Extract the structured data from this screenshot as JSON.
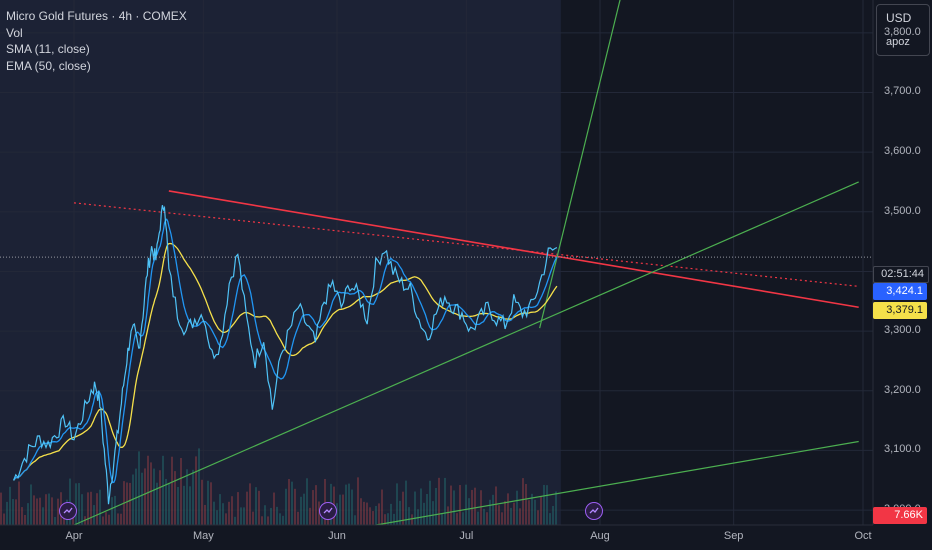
{
  "legend": {
    "title": "Micro Gold Futures · 4h · COMEX",
    "vol": "Vol",
    "sma": "SMA (11, close)",
    "ema": "EMA (50, close)"
  },
  "top_right": {
    "currency": "USD",
    "user": "apoz"
  },
  "y_axis": {
    "labels": [
      {
        "text": "3,800.0",
        "value": 3800
      },
      {
        "text": "3,700.0",
        "value": 3700
      },
      {
        "text": "3,600.0",
        "value": 3600
      },
      {
        "text": "3,500.0",
        "value": 3500
      },
      {
        "text": "3,300.0",
        "value": 3300
      },
      {
        "text": "3,200.0",
        "value": 3200
      },
      {
        "text": "3,100.0",
        "value": 3100
      },
      {
        "text": "3,000.0",
        "value": 3000
      }
    ],
    "ylim": [
      2975,
      3855
    ]
  },
  "x_axis": {
    "labels": [
      {
        "text": "Apr",
        "day": 0
      },
      {
        "text": "May",
        "day": 30
      },
      {
        "text": "Jun",
        "day": 61
      },
      {
        "text": "Jul",
        "day": 91
      },
      {
        "text": "Aug",
        "day": 122
      },
      {
        "text": "Sep",
        "day": 153
      },
      {
        "text": "Oct",
        "day": 183
      }
    ]
  },
  "price_tags": {
    "countdown": "02:51:44",
    "close": "3,424.1",
    "ema": "3,379.1",
    "volume": "7.66K"
  },
  "colors": {
    "background": "#131722",
    "up": "#26a69a",
    "candle_line": "#4fc3f7",
    "sma": "#2196f3",
    "ema": "#f5e04a",
    "resistance": "#f23645",
    "support": "#4caf50",
    "volume_up": "#26a69a",
    "volume_down": "#ef5350"
  },
  "chart_data": {
    "type": "line",
    "x_unit": "days since Apr 1",
    "price_series": {
      "name": "Micro Gold Futures",
      "x": [
        -14,
        -12,
        -10,
        -8,
        -6,
        -4,
        -2,
        0,
        2,
        4,
        5,
        6,
        7,
        8,
        9,
        10,
        11,
        12,
        13,
        14,
        15,
        16,
        17,
        18,
        19,
        20,
        21,
        22,
        24,
        26,
        28,
        30,
        32,
        34,
        36,
        38,
        40,
        42,
        44,
        46,
        48,
        50,
        52,
        54,
        56,
        58,
        60,
        62,
        64,
        66,
        68,
        70,
        72,
        74,
        76,
        78,
        80,
        82,
        84,
        86,
        88,
        90,
        92,
        94,
        96,
        98,
        100,
        102,
        104,
        106,
        108,
        110,
        112
      ],
      "values": [
        3050,
        3080,
        3105,
        3120,
        3110,
        3130,
        3150,
        3120,
        3160,
        3200,
        3210,
        3180,
        3100,
        3020,
        3070,
        3120,
        3180,
        3240,
        3290,
        3300,
        3270,
        3330,
        3400,
        3440,
        3420,
        3480,
        3520,
        3400,
        3330,
        3300,
        3320,
        3330,
        3260,
        3280,
        3380,
        3430,
        3320,
        3250,
        3290,
        3170,
        3260,
        3300,
        3340,
        3310,
        3280,
        3350,
        3380,
        3340,
        3380,
        3360,
        3320,
        3410,
        3440,
        3400,
        3380,
        3370,
        3320,
        3290,
        3330,
        3360,
        3340,
        3330,
        3300,
        3320,
        3340,
        3320,
        3310,
        3350,
        3330,
        3340,
        3380,
        3430,
        3440
      ]
    },
    "trendlines": [
      {
        "name": "resistance",
        "style": "solid",
        "points": [
          [
            22,
            3535
          ],
          [
            182,
            3340
          ]
        ]
      },
      {
        "name": "resistance-extension",
        "style": "dotted",
        "points": [
          [
            0,
            3515
          ],
          [
            182,
            3375
          ]
        ]
      },
      {
        "name": "support-steep",
        "style": "solid",
        "points": [
          [
            108,
            3305
          ],
          [
            128,
            3895
          ]
        ]
      },
      {
        "name": "support-main",
        "style": "solid",
        "points": [
          [
            0,
            2975
          ],
          [
            182,
            3550
          ]
        ]
      },
      {
        "name": "support-lower",
        "style": "solid",
        "points": [
          [
            70,
            2975
          ],
          [
            182,
            3115
          ]
        ]
      }
    ]
  }
}
